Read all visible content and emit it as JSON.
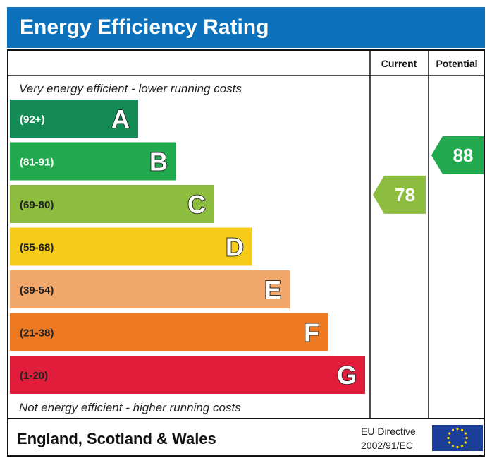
{
  "title": "Energy Efficiency Rating",
  "columns": {
    "current": "Current",
    "potential": "Potential"
  },
  "notes": {
    "top": "Very energy efficient - lower running costs",
    "bottom": "Not energy efficient - higher running costs"
  },
  "footer": {
    "region": "England, Scotland & Wales",
    "directive_line1": "EU Directive",
    "directive_line2": "2002/91/EC",
    "flag_icon": "eu-flag-icon"
  },
  "chart_data": {
    "type": "bar",
    "categories": [
      "A",
      "B",
      "C",
      "D",
      "E",
      "F",
      "G"
    ],
    "ranges": [
      "(92+)",
      "(81-91)",
      "(69-80)",
      "(55-68)",
      "(39-54)",
      "(21-38)",
      "(1-20)"
    ],
    "colors": [
      "#148a55",
      "#22a94d",
      "#8dbd3e",
      "#f6cb1a",
      "#f2a86b",
      "#ed7a22",
      "#e21d3c"
    ],
    "label_colors": [
      "#ffffff",
      "#ffffff",
      "#222222",
      "#222222",
      "#222222",
      "#222222",
      "#222222"
    ],
    "current": {
      "value": 78,
      "band": "C",
      "color": "#8dbd3e"
    },
    "potential": {
      "value": 88,
      "band": "B",
      "color": "#22a94d"
    }
  }
}
